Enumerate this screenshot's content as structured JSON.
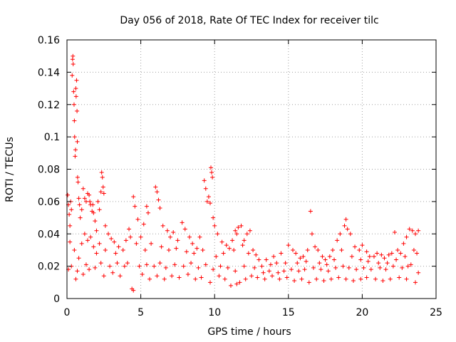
{
  "chart_data": {
    "type": "scatter",
    "title": "Day 056 of 2018, Rate Of TEC Index for receiver tilc",
    "xlabel": "GPS time / hours",
    "ylabel": "ROTI / TECUs",
    "xlim": [
      0,
      25
    ],
    "ylim": [
      0,
      0.16
    ],
    "x_ticks": [
      "0",
      "5",
      "10",
      "15",
      "20",
      "25"
    ],
    "x_tick_values": [
      0,
      5,
      10,
      15,
      20,
      25
    ],
    "y_ticks": [
      "0",
      "0.02",
      "0.04",
      "0.06",
      "0.08",
      "0.1",
      "0.12",
      "0.14",
      "0.16"
    ],
    "y_tick_values": [
      0,
      0.02,
      0.04,
      0.06,
      0.08,
      0.1,
      0.12,
      0.14,
      0.16
    ],
    "grid": true,
    "marker": "plus",
    "marker_color": "#ff0000",
    "axis_color": "#000000",
    "grid_color": "#a0a0a0",
    "series": [
      {
        "name": "ROTI",
        "points": [
          [
            0.05,
            0.064
          ],
          [
            0.1,
            0.058
          ],
          [
            0.15,
            0.052
          ],
          [
            0.2,
            0.045
          ],
          [
            0.25,
            0.06
          ],
          [
            0.3,
            0.055
          ],
          [
            0.35,
            0.138
          ],
          [
            0.38,
            0.148
          ],
          [
            0.4,
            0.15
          ],
          [
            0.42,
            0.145
          ],
          [
            0.45,
            0.128
          ],
          [
            0.48,
            0.12
          ],
          [
            0.5,
            0.11
          ],
          [
            0.52,
            0.1
          ],
          [
            0.55,
            0.088
          ],
          [
            0.58,
            0.092
          ],
          [
            0.6,
            0.13
          ],
          [
            0.62,
            0.125
          ],
          [
            0.65,
            0.135
          ],
          [
            0.68,
            0.116
          ],
          [
            0.7,
            0.097
          ],
          [
            0.72,
            0.075
          ],
          [
            0.75,
            0.072
          ],
          [
            0.8,
            0.062
          ],
          [
            0.85,
            0.058
          ],
          [
            0.9,
            0.05
          ],
          [
            1.0,
            0.055
          ],
          [
            1.1,
            0.068
          ],
          [
            1.2,
            0.062
          ],
          [
            1.3,
            0.06
          ],
          [
            1.4,
            0.065
          ],
          [
            1.5,
            0.064
          ],
          [
            1.55,
            0.06
          ],
          [
            1.6,
            0.058
          ],
          [
            1.7,
            0.054
          ],
          [
            1.75,
            0.058
          ],
          [
            1.8,
            0.053
          ],
          [
            1.9,
            0.048
          ],
          [
            2.0,
            0.042
          ],
          [
            2.1,
            0.06
          ],
          [
            2.2,
            0.055
          ],
          [
            2.3,
            0.066
          ],
          [
            2.35,
            0.078
          ],
          [
            2.4,
            0.075
          ],
          [
            2.45,
            0.069
          ],
          [
            2.5,
            0.065
          ],
          [
            2.6,
            0.045
          ],
          [
            2.8,
            0.04
          ],
          [
            3.0,
            0.037
          ],
          [
            3.2,
            0.035
          ],
          [
            3.5,
            0.032
          ],
          [
            3.8,
            0.03
          ],
          [
            4.0,
            0.036
          ],
          [
            4.2,
            0.043
          ],
          [
            4.5,
            0.063
          ],
          [
            4.6,
            0.057
          ],
          [
            4.8,
            0.049
          ],
          [
            5.0,
            0.038
          ],
          [
            5.2,
            0.046
          ],
          [
            5.4,
            0.057
          ],
          [
            5.5,
            0.053
          ],
          [
            6.0,
            0.069
          ],
          [
            6.1,
            0.066
          ],
          [
            6.2,
            0.061
          ],
          [
            6.3,
            0.056
          ],
          [
            6.5,
            0.045
          ],
          [
            6.8,
            0.042
          ],
          [
            7.0,
            0.038
          ],
          [
            7.2,
            0.041
          ],
          [
            7.5,
            0.036
          ],
          [
            7.8,
            0.047
          ],
          [
            8.0,
            0.043
          ],
          [
            8.3,
            0.038
          ],
          [
            8.5,
            0.034
          ],
          [
            8.8,
            0.031
          ],
          [
            9.0,
            0.038
          ],
          [
            9.3,
            0.073
          ],
          [
            9.4,
            0.068
          ],
          [
            9.5,
            0.06
          ],
          [
            9.6,
            0.063
          ],
          [
            9.7,
            0.059
          ],
          [
            9.75,
            0.081
          ],
          [
            9.8,
            0.078
          ],
          [
            9.85,
            0.075
          ],
          [
            9.9,
            0.05
          ],
          [
            10.0,
            0.045
          ],
          [
            10.2,
            0.04
          ],
          [
            10.5,
            0.035
          ],
          [
            10.8,
            0.033
          ],
          [
            11.0,
            0.031
          ],
          [
            11.2,
            0.036
          ],
          [
            11.4,
            0.042
          ],
          [
            11.5,
            0.04
          ],
          [
            11.6,
            0.044
          ],
          [
            11.8,
            0.045
          ],
          [
            12.0,
            0.036
          ],
          [
            12.2,
            0.04
          ],
          [
            12.4,
            0.042
          ],
          [
            12.6,
            0.03
          ],
          [
            12.8,
            0.027
          ],
          [
            13.0,
            0.024
          ],
          [
            13.5,
            0.024
          ],
          [
            14.0,
            0.026
          ],
          [
            14.5,
            0.028
          ],
          [
            15.0,
            0.033
          ],
          [
            15.3,
            0.03
          ],
          [
            15.5,
            0.028
          ],
          [
            15.8,
            0.025
          ],
          [
            16.0,
            0.026
          ],
          [
            16.3,
            0.03
          ],
          [
            16.5,
            0.054
          ],
          [
            16.6,
            0.04
          ],
          [
            16.8,
            0.032
          ],
          [
            17.0,
            0.03
          ],
          [
            17.3,
            0.026
          ],
          [
            17.5,
            0.024
          ],
          [
            17.8,
            0.026
          ],
          [
            18.0,
            0.03
          ],
          [
            18.3,
            0.036
          ],
          [
            18.5,
            0.04
          ],
          [
            18.8,
            0.045
          ],
          [
            18.9,
            0.049
          ],
          [
            19.0,
            0.043
          ],
          [
            19.2,
            0.04
          ],
          [
            19.5,
            0.032
          ],
          [
            19.8,
            0.03
          ],
          [
            20.0,
            0.033
          ],
          [
            20.3,
            0.029
          ],
          [
            20.5,
            0.026
          ],
          [
            20.8,
            0.026
          ],
          [
            21.0,
            0.028
          ],
          [
            21.3,
            0.027
          ],
          [
            21.5,
            0.025
          ],
          [
            21.8,
            0.027
          ],
          [
            22.0,
            0.028
          ],
          [
            22.2,
            0.041
          ],
          [
            22.4,
            0.03
          ],
          [
            22.6,
            0.028
          ],
          [
            22.8,
            0.034
          ],
          [
            23.0,
            0.038
          ],
          [
            23.2,
            0.043
          ],
          [
            23.4,
            0.042
          ],
          [
            23.6,
            0.04
          ],
          [
            23.8,
            0.042
          ],
          [
            0.2,
            0.035
          ],
          [
            0.5,
            0.03
          ],
          [
            0.8,
            0.025
          ],
          [
            1.0,
            0.034
          ],
          [
            1.2,
            0.04
          ],
          [
            1.4,
            0.036
          ],
          [
            1.6,
            0.038
          ],
          [
            1.8,
            0.032
          ],
          [
            2.0,
            0.028
          ],
          [
            2.2,
            0.034
          ],
          [
            2.6,
            0.03
          ],
          [
            3.3,
            0.028
          ],
          [
            4.3,
            0.038
          ],
          [
            4.7,
            0.034
          ],
          [
            5.3,
            0.03
          ],
          [
            5.7,
            0.034
          ],
          [
            6.4,
            0.032
          ],
          [
            6.9,
            0.03
          ],
          [
            7.4,
            0.031
          ],
          [
            8.1,
            0.029
          ],
          [
            8.6,
            0.028
          ],
          [
            9.2,
            0.03
          ],
          [
            10.1,
            0.026
          ],
          [
            10.6,
            0.028
          ],
          [
            11.3,
            0.03
          ],
          [
            11.9,
            0.033
          ],
          [
            12.3,
            0.028
          ],
          [
            13.2,
            0.02
          ],
          [
            13.8,
            0.021
          ],
          [
            14.2,
            0.022
          ],
          [
            14.8,
            0.022
          ],
          [
            15.6,
            0.022
          ],
          [
            16.2,
            0.023
          ],
          [
            17.1,
            0.022
          ],
          [
            17.6,
            0.021
          ],
          [
            18.1,
            0.024
          ],
          [
            18.6,
            0.03
          ],
          [
            19.3,
            0.026
          ],
          [
            19.9,
            0.024
          ],
          [
            20.4,
            0.023
          ],
          [
            21.1,
            0.022
          ],
          [
            21.7,
            0.022
          ],
          [
            22.3,
            0.024
          ],
          [
            22.9,
            0.026
          ],
          [
            23.5,
            0.03
          ],
          [
            23.7,
            0.028
          ],
          [
            0.1,
            0.018
          ],
          [
            0.6,
            0.012
          ],
          [
            1.1,
            0.015
          ],
          [
            1.5,
            0.018
          ],
          [
            2.5,
            0.014
          ],
          [
            3.1,
            0.016
          ],
          [
            3.6,
            0.014
          ],
          [
            4.4,
            0.006
          ],
          [
            4.5,
            0.005
          ],
          [
            5.1,
            0.015
          ],
          [
            5.6,
            0.012
          ],
          [
            6.1,
            0.014
          ],
          [
            6.6,
            0.012
          ],
          [
            7.1,
            0.014
          ],
          [
            7.6,
            0.013
          ],
          [
            8.2,
            0.015
          ],
          [
            8.7,
            0.012
          ],
          [
            9.1,
            0.013
          ],
          [
            9.7,
            0.01
          ],
          [
            10.3,
            0.014
          ],
          [
            10.7,
            0.012
          ],
          [
            11.1,
            0.008
          ],
          [
            11.5,
            0.009
          ],
          [
            11.7,
            0.01
          ],
          [
            12.1,
            0.012
          ],
          [
            12.5,
            0.014
          ],
          [
            12.9,
            0.013
          ],
          [
            13.4,
            0.012
          ],
          [
            13.9,
            0.014
          ],
          [
            14.4,
            0.012
          ],
          [
            14.9,
            0.013
          ],
          [
            15.4,
            0.011
          ],
          [
            15.9,
            0.012
          ],
          [
            16.4,
            0.01
          ],
          [
            16.9,
            0.012
          ],
          [
            17.4,
            0.011
          ],
          [
            17.9,
            0.012
          ],
          [
            18.4,
            0.013
          ],
          [
            18.9,
            0.012
          ],
          [
            19.4,
            0.011
          ],
          [
            19.9,
            0.012
          ],
          [
            20.3,
            0.013
          ],
          [
            20.9,
            0.012
          ],
          [
            21.4,
            0.011
          ],
          [
            21.9,
            0.012
          ],
          [
            22.5,
            0.013
          ],
          [
            23.0,
            0.012
          ],
          [
            23.6,
            0.01
          ],
          [
            0.3,
            0.02
          ],
          [
            0.7,
            0.017
          ],
          [
            1.3,
            0.021
          ],
          [
            1.9,
            0.019
          ],
          [
            2.3,
            0.022
          ],
          [
            2.9,
            0.02
          ],
          [
            3.4,
            0.022
          ],
          [
            3.9,
            0.02
          ],
          [
            4.1,
            0.022
          ],
          [
            4.9,
            0.02
          ],
          [
            5.4,
            0.021
          ],
          [
            5.9,
            0.02
          ],
          [
            6.3,
            0.022
          ],
          [
            6.7,
            0.019
          ],
          [
            7.3,
            0.021
          ],
          [
            7.9,
            0.02
          ],
          [
            8.4,
            0.022
          ],
          [
            8.9,
            0.019
          ],
          [
            9.4,
            0.021
          ],
          [
            9.9,
            0.018
          ],
          [
            10.4,
            0.02
          ],
          [
            10.9,
            0.019
          ],
          [
            11.4,
            0.017
          ],
          [
            12.0,
            0.02
          ],
          [
            12.7,
            0.019
          ],
          [
            13.3,
            0.016
          ],
          [
            13.7,
            0.017
          ],
          [
            14.3,
            0.016
          ],
          [
            14.7,
            0.017
          ],
          [
            15.2,
            0.018
          ],
          [
            15.7,
            0.017
          ],
          [
            16.1,
            0.018
          ],
          [
            16.7,
            0.019
          ],
          [
            17.2,
            0.018
          ],
          [
            17.7,
            0.017
          ],
          [
            18.2,
            0.019
          ],
          [
            18.7,
            0.02
          ],
          [
            19.1,
            0.019
          ],
          [
            19.6,
            0.018
          ],
          [
            20.1,
            0.019
          ],
          [
            20.6,
            0.018
          ],
          [
            21.2,
            0.019
          ],
          [
            21.6,
            0.018
          ],
          [
            22.1,
            0.02
          ],
          [
            22.7,
            0.019
          ],
          [
            23.1,
            0.02
          ],
          [
            23.3,
            0.021
          ],
          [
            23.8,
            0.016
          ]
        ]
      }
    ]
  }
}
